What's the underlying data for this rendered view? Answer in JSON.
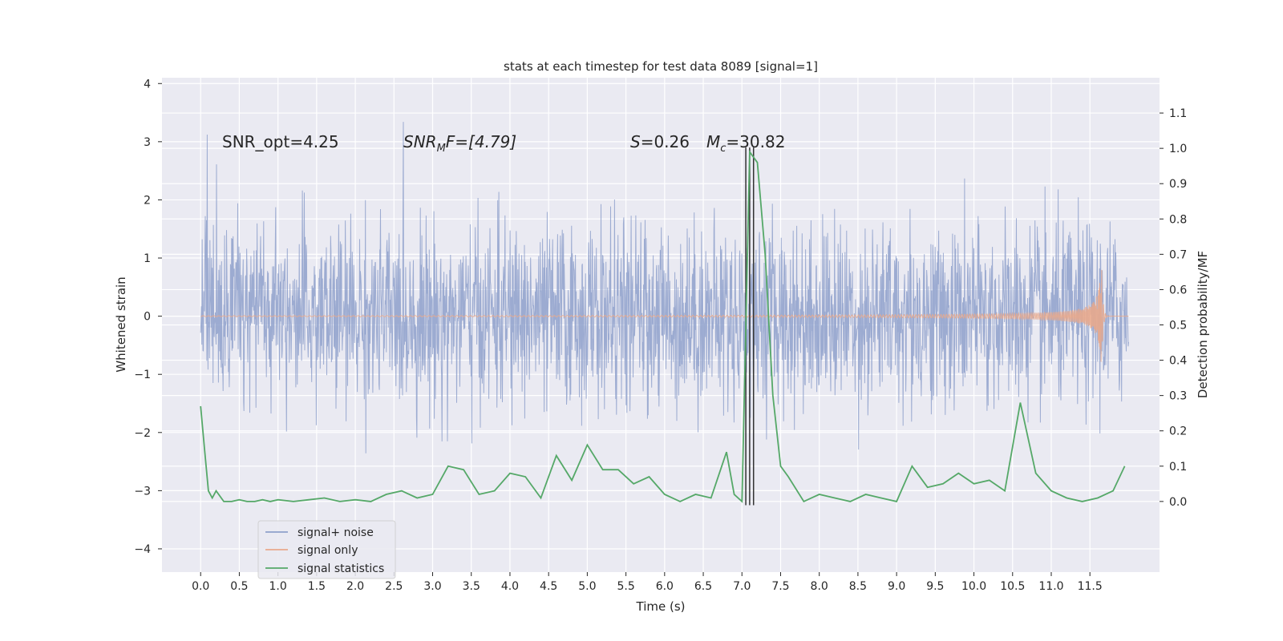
{
  "chart_data": {
    "type": "line",
    "title": "stats at each timestep for test data 8089 [signal=1]",
    "xlabel": "Time (s)",
    "ylabel": "Whitened strain",
    "ylabel_right": "Detection probability/MF",
    "xlim": [
      -0.5,
      12.4
    ],
    "ylim": [
      -4.4,
      4.1
    ],
    "ylim_right": [
      -0.2,
      1.2
    ],
    "x_ticks": [
      "0.0",
      "0.5",
      "1.0",
      "1.5",
      "2.0",
      "2.5",
      "3.0",
      "3.5",
      "4.0",
      "4.5",
      "5.0",
      "5.5",
      "6.0",
      "6.5",
      "7.0",
      "7.5",
      "8.0",
      "8.5",
      "9.0",
      "9.5",
      "10.0",
      "10.5",
      "11.0",
      "11.5"
    ],
    "y_ticks": [
      "4",
      "3",
      "2",
      "1",
      "0",
      "−1",
      "−2",
      "−3",
      "−4"
    ],
    "y_ticks_right": [
      "1.1",
      "1.0",
      "0.9",
      "0.8",
      "0.7",
      "0.6",
      "0.5",
      "0.4",
      "0.3",
      "0.2",
      "0.1",
      "0.0"
    ],
    "annotations": {
      "snr_opt": "SNR_opt=4.25",
      "snr_mf_main": "SNR",
      "snr_mf_sub": "M",
      "snr_mf_rest": "F=[4.79]",
      "s_var": "S",
      "s_val": "=0.26",
      "mc_var": "M",
      "mc_sub": "c",
      "mc_val": "=30.82"
    },
    "series": [
      {
        "name": "signal+ noise",
        "color": "#8ea0cb",
        "axis": "left",
        "x_range": [
          0,
          12
        ],
        "description_envelope": [
          -2.2,
          2.2
        ]
      },
      {
        "name": "signal only",
        "color": "#e8a88c",
        "axis": "left",
        "x_range": [
          0,
          12
        ],
        "chirp_peak_time": 11.65,
        "chirp_peak_amplitude": 1.0
      },
      {
        "name": "signal statistics",
        "color": "#55a868",
        "axis": "right",
        "x": [
          0.0,
          0.05,
          0.1,
          0.15,
          0.2,
          0.3,
          0.4,
          0.5,
          0.6,
          0.7,
          0.8,
          0.9,
          1.0,
          1.2,
          1.4,
          1.6,
          1.8,
          2.0,
          2.2,
          2.4,
          2.6,
          2.8,
          3.0,
          3.2,
          3.4,
          3.6,
          3.8,
          4.0,
          4.2,
          4.4,
          4.6,
          4.8,
          5.0,
          5.2,
          5.4,
          5.6,
          5.8,
          6.0,
          6.2,
          6.4,
          6.6,
          6.8,
          6.9,
          7.0,
          7.1,
          7.2,
          7.3,
          7.4,
          7.5,
          7.6,
          7.8,
          8.0,
          8.2,
          8.4,
          8.6,
          8.8,
          9.0,
          9.2,
          9.4,
          9.6,
          9.8,
          10.0,
          10.2,
          10.4,
          10.6,
          10.8,
          11.0,
          11.2,
          11.4,
          11.6,
          11.8,
          11.95
        ],
        "values": [
          0.27,
          0.15,
          0.03,
          0.01,
          0.03,
          0.0,
          0.0,
          0.005,
          0.0,
          0.0,
          0.005,
          0.0,
          0.005,
          0.0,
          0.005,
          0.01,
          0.0,
          0.005,
          0.0,
          0.02,
          0.03,
          0.01,
          0.02,
          0.1,
          0.09,
          0.02,
          0.03,
          0.08,
          0.07,
          0.01,
          0.13,
          0.06,
          0.16,
          0.09,
          0.09,
          0.05,
          0.07,
          0.02,
          0.0,
          0.02,
          0.01,
          0.14,
          0.02,
          0.0,
          0.99,
          0.96,
          0.7,
          0.3,
          0.1,
          0.07,
          0.0,
          0.02,
          0.01,
          0.0,
          0.02,
          0.01,
          0.0,
          0.1,
          0.04,
          0.05,
          0.08,
          0.05,
          0.06,
          0.03,
          0.28,
          0.08,
          0.03,
          0.01,
          0.0,
          0.01,
          0.03,
          0.1
        ]
      }
    ],
    "vertical_lines": [
      7.05,
      7.1,
      7.15
    ],
    "legend_position": "lower-left",
    "grid": true
  }
}
